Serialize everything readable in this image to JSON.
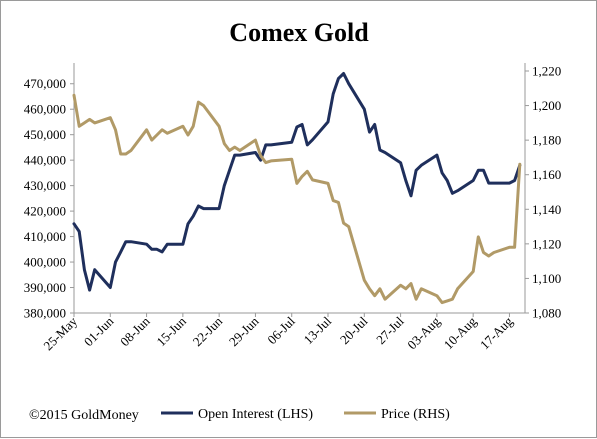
{
  "chart_data": {
    "type": "line",
    "title": "Comex Gold",
    "x_categories": [
      "25-May",
      "01-Jun",
      "08-Jun",
      "15-Jun",
      "22-Jun",
      "29-Jun",
      "06-Jul",
      "13-Jul",
      "20-Jul",
      "27-Jul",
      "03-Aug",
      "10-Aug",
      "17-Aug"
    ],
    "y_left": {
      "ticks": [
        "380,000",
        "390,000",
        "400,000",
        "410,000",
        "420,000",
        "430,000",
        "440,000",
        "450,000",
        "460,000",
        "470,000"
      ],
      "range": [
        380000,
        475000
      ]
    },
    "y_right": {
      "ticks": [
        "1,080",
        "1,100",
        "1,120",
        "1,140",
        "1,160",
        "1,180",
        "1,200",
        "1,220"
      ],
      "range": [
        1080,
        1220
      ]
    },
    "legend": {
      "placement": "bottom"
    },
    "series": [
      {
        "name": "Open Interest (LHS)",
        "axis": "left",
        "color": "#1f2f5c",
        "points": [
          [
            "25-May",
            415000
          ],
          [
            "26-May",
            412000
          ],
          [
            "27-May",
            397000
          ],
          [
            "28-May",
            389000
          ],
          [
            "29-May",
            397000
          ],
          [
            "01-Jun",
            390000
          ],
          [
            "02-Jun",
            400000
          ],
          [
            "03-Jun",
            404000
          ],
          [
            "04-Jun",
            408000
          ],
          [
            "05-Jun",
            408000
          ],
          [
            "08-Jun",
            407000
          ],
          [
            "09-Jun",
            405000
          ],
          [
            "10-Jun",
            405000
          ],
          [
            "11-Jun",
            404000
          ],
          [
            "12-Jun",
            407000
          ],
          [
            "15-Jun",
            407000
          ],
          [
            "16-Jun",
            415000
          ],
          [
            "17-Jun",
            418000
          ],
          [
            "18-Jun",
            422000
          ],
          [
            "19-Jun",
            421000
          ],
          [
            "22-Jun",
            421000
          ],
          [
            "23-Jun",
            430000
          ],
          [
            "24-Jun",
            436000
          ],
          [
            "25-Jun",
            442000
          ],
          [
            "26-Jun",
            442000
          ],
          [
            "29-Jun",
            443000
          ],
          [
            "30-Jun",
            440000
          ],
          [
            "01-Jul",
            446000
          ],
          [
            "02-Jul",
            446000
          ],
          [
            "06-Jul",
            447000
          ],
          [
            "07-Jul",
            453000
          ],
          [
            "08-Jul",
            454000
          ],
          [
            "09-Jul",
            446000
          ],
          [
            "10-Jul",
            448000
          ],
          [
            "13-Jul",
            455000
          ],
          [
            "14-Jul",
            466000
          ],
          [
            "15-Jul",
            472000
          ],
          [
            "16-Jul",
            474000
          ],
          [
            "17-Jul",
            470000
          ],
          [
            "20-Jul",
            460000
          ],
          [
            "21-Jul",
            451000
          ],
          [
            "22-Jul",
            454000
          ],
          [
            "23-Jul",
            444000
          ],
          [
            "24-Jul",
            443000
          ],
          [
            "27-Jul",
            439000
          ],
          [
            "28-Jul",
            432000
          ],
          [
            "29-Jul",
            426000
          ],
          [
            "30-Jul",
            436000
          ],
          [
            "31-Jul",
            438000
          ],
          [
            "03-Aug",
            442000
          ],
          [
            "04-Aug",
            435000
          ],
          [
            "05-Aug",
            432000
          ],
          [
            "06-Aug",
            427000
          ],
          [
            "07-Aug",
            428000
          ],
          [
            "10-Aug",
            432000
          ],
          [
            "11-Aug",
            436000
          ],
          [
            "12-Aug",
            436000
          ],
          [
            "13-Aug",
            431000
          ],
          [
            "14-Aug",
            431000
          ],
          [
            "17-Aug",
            431000
          ],
          [
            "18-Aug",
            432000
          ],
          [
            "19-Aug",
            438000
          ]
        ]
      },
      {
        "name": "Price (RHS)",
        "axis": "right",
        "color": "#b19a67",
        "points": [
          [
            "25-May",
            1206
          ],
          [
            "26-May",
            1188
          ],
          [
            "27-May",
            1190
          ],
          [
            "28-May",
            1192
          ],
          [
            "29-May",
            1190
          ],
          [
            "01-Jun",
            1193
          ],
          [
            "02-Jun",
            1186
          ],
          [
            "03-Jun",
            1172
          ],
          [
            "04-Jun",
            1172
          ],
          [
            "05-Jun",
            1174
          ],
          [
            "08-Jun",
            1186
          ],
          [
            "09-Jun",
            1180
          ],
          [
            "10-Jun",
            1183
          ],
          [
            "11-Jun",
            1186
          ],
          [
            "12-Jun",
            1184
          ],
          [
            "15-Jun",
            1188
          ],
          [
            "16-Jun",
            1183
          ],
          [
            "17-Jun",
            1188
          ],
          [
            "18-Jun",
            1202
          ],
          [
            "19-Jun",
            1200
          ],
          [
            "22-Jun",
            1188
          ],
          [
            "23-Jun",
            1178
          ],
          [
            "24-Jun",
            1174
          ],
          [
            "25-Jun",
            1176
          ],
          [
            "26-Jun",
            1174
          ],
          [
            "29-Jun",
            1180
          ],
          [
            "30-Jun",
            1171
          ],
          [
            "01-Jul",
            1167
          ],
          [
            "02-Jul",
            1168
          ],
          [
            "06-Jul",
            1169
          ],
          [
            "07-Jul",
            1155
          ],
          [
            "08-Jul",
            1159
          ],
          [
            "09-Jul",
            1162
          ],
          [
            "10-Jul",
            1157
          ],
          [
            "13-Jul",
            1155
          ],
          [
            "14-Jul",
            1145
          ],
          [
            "15-Jul",
            1144
          ],
          [
            "16-Jul",
            1132
          ],
          [
            "17-Jul",
            1130
          ],
          [
            "20-Jul",
            1099
          ],
          [
            "21-Jul",
            1094
          ],
          [
            "22-Jul",
            1090
          ],
          [
            "23-Jul",
            1094
          ],
          [
            "24-Jul",
            1088
          ],
          [
            "27-Jul",
            1096
          ],
          [
            "28-Jul",
            1094
          ],
          [
            "29-Jul",
            1097
          ],
          [
            "30-Jul",
            1088
          ],
          [
            "31-Jul",
            1094
          ],
          [
            "03-Aug",
            1090
          ],
          [
            "04-Aug",
            1086
          ],
          [
            "05-Aug",
            1087
          ],
          [
            "06-Aug",
            1088
          ],
          [
            "07-Aug",
            1094
          ],
          [
            "10-Aug",
            1104
          ],
          [
            "11-Aug",
            1124
          ],
          [
            "12-Aug",
            1115
          ],
          [
            "13-Aug",
            1113
          ],
          [
            "14-Aug",
            1115
          ],
          [
            "17-Aug",
            1118
          ],
          [
            "18-Aug",
            1118
          ],
          [
            "19-Aug",
            1166
          ]
        ]
      }
    ]
  },
  "copyright": "©2015 GoldMoney"
}
